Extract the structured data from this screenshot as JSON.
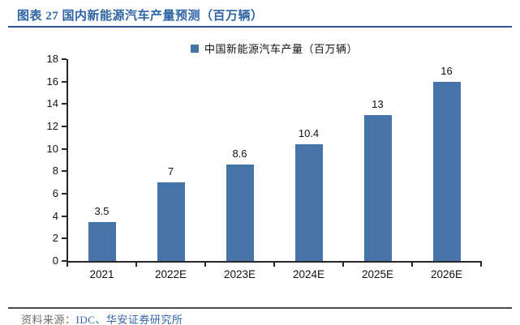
{
  "page": {
    "title": "图表 27 国内新能源汽车产量预测（百万辆）",
    "source_label": "资料来源：",
    "source_value": "IDC、华安证券研究所"
  },
  "colors": {
    "bar": "#4674a8",
    "title_blue": "#2e64a5",
    "title_rule": "#2f5390",
    "axis": "#262626",
    "source_gray": "#6f6d66",
    "source_blue": "#3464a8"
  },
  "chart_data": {
    "type": "bar",
    "title": "",
    "legend": "中国新能源汽车产量（百万辆）",
    "legend_position": "top",
    "categories": [
      "2021",
      "2022E",
      "2023E",
      "2024E",
      "2025E",
      "2026E"
    ],
    "values": [
      3.5,
      7,
      8.6,
      10.4,
      13,
      16
    ],
    "value_labels": [
      "3.5",
      "7",
      "8.6",
      "10.4",
      "13",
      "16"
    ],
    "ylim": [
      0,
      18
    ],
    "ytick_step": 2,
    "grid": false
  }
}
